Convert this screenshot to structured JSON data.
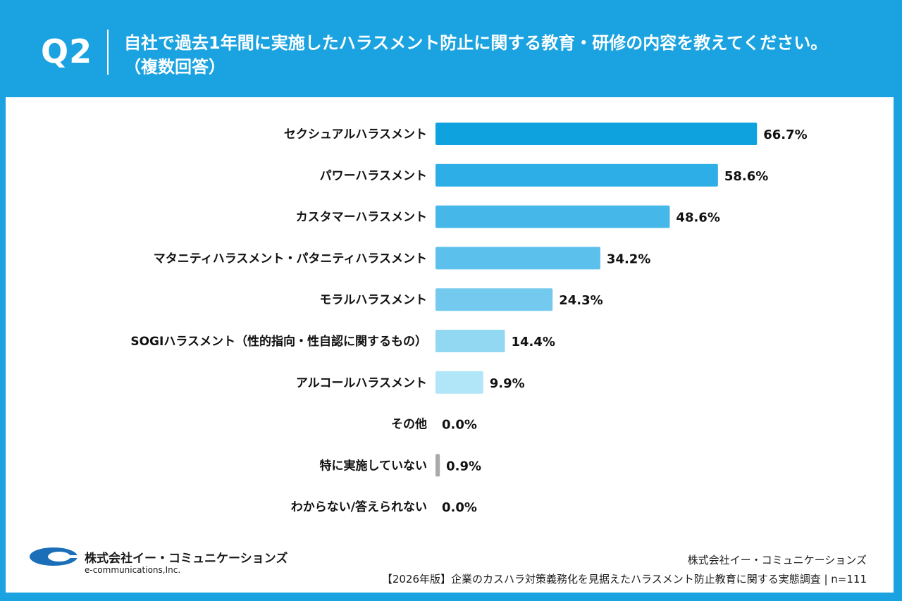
{
  "question": {
    "label": "Q2",
    "text": "自社で過去1年間に実施したハラスメント防止に関する教育・研修の内容を教えてください。（複数回答）"
  },
  "chart_data": {
    "type": "bar",
    "orientation": "horizontal",
    "categories": [
      "セクシュアルハラスメント",
      "パワーハラスメント",
      "カスタマーハラスメント",
      "マタニティハラスメント・パタニティハラスメント",
      "モラルハラスメント",
      "SOGIハラスメント（性的指向・性自認に関するもの）",
      "アルコールハラスメント",
      "その他",
      "特に実施していない",
      "わからない/答えられない"
    ],
    "values": [
      66.7,
      58.6,
      48.6,
      34.2,
      24.3,
      14.4,
      9.9,
      0.0,
      0.9,
      0.0
    ],
    "value_labels": [
      "66.7%",
      "58.6%",
      "48.6%",
      "34.2%",
      "24.3%",
      "14.4%",
      "9.9%",
      "0.0%",
      "0.9%",
      "0.0%"
    ],
    "bar_colors": [
      "#0ea2df",
      "#2eaee6",
      "#45b7e9",
      "#5cc0ec",
      "#74c9ef",
      "#92d8f3",
      "#b0e6f7",
      "#cccccc",
      "#aaaaaa",
      "#cccccc"
    ],
    "xlim": [
      0,
      100
    ],
    "grid": false,
    "legend": "none"
  },
  "footer": {
    "logo_name_jp": "株式会社イー・コミュニケーションズ",
    "logo_name_en": "e-communications,Inc.",
    "company": "株式会社イー・コミュニケーションズ",
    "source": "【2026年版】企業のカスハラ対策義務化を見据えたハラスメント防止教育に関する実態調査 | n=111"
  },
  "colors": {
    "header_bg": "#1aa3e0",
    "panel_bg": "#ffffff",
    "logo_blue": "#1a6fb8"
  }
}
